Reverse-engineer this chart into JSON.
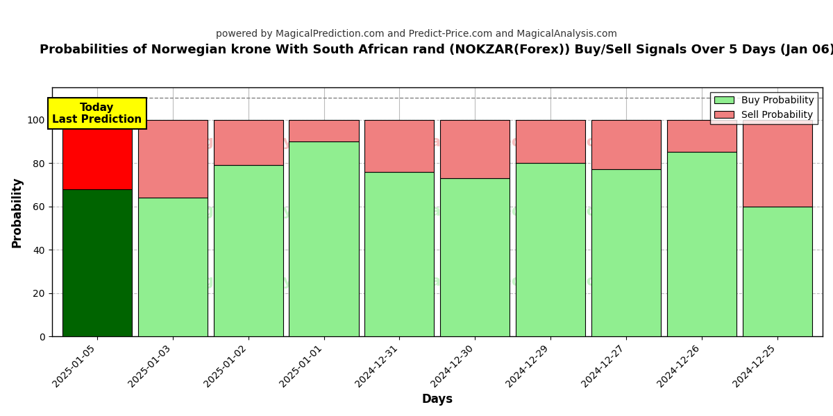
{
  "title": "Probabilities of Norwegian krone With South African rand (NOKZAR(Forex)) Buy/Sell Signals Over 5 Days (Jan 06)",
  "subtitle": "powered by MagicalPrediction.com and Predict-Price.com and MagicalAnalysis.com",
  "xlabel": "Days",
  "ylabel": "Probability",
  "categories": [
    "2025-01-05",
    "2025-01-03",
    "2025-01-02",
    "2025-01-01",
    "2024-12-31",
    "2024-12-30",
    "2024-12-29",
    "2024-12-27",
    "2024-12-26",
    "2024-12-25"
  ],
  "buy_values": [
    68,
    64,
    79,
    90,
    76,
    73,
    80,
    77,
    85,
    60
  ],
  "sell_values": [
    32,
    36,
    21,
    10,
    24,
    27,
    20,
    23,
    15,
    40
  ],
  "today_buy_color": "#006400",
  "today_sell_color": "#ff0000",
  "regular_buy_color": "#90EE90",
  "regular_sell_color": "#F08080",
  "today_label_bg": "#ffff00",
  "today_label_text": "Today\nLast Prediction",
  "legend_buy_label": "Buy Probability",
  "legend_sell_label": "Sell Probability",
  "ylim": [
    0,
    115
  ],
  "yticks": [
    0,
    20,
    40,
    60,
    80,
    100
  ],
  "dashed_line_y": 110,
  "bar_width": 0.92,
  "background_color": "#ffffff",
  "grid_color": "#bbbbbb",
  "watermark_color_green": "#90EE90",
  "watermark_color_pink": "#F08080"
}
